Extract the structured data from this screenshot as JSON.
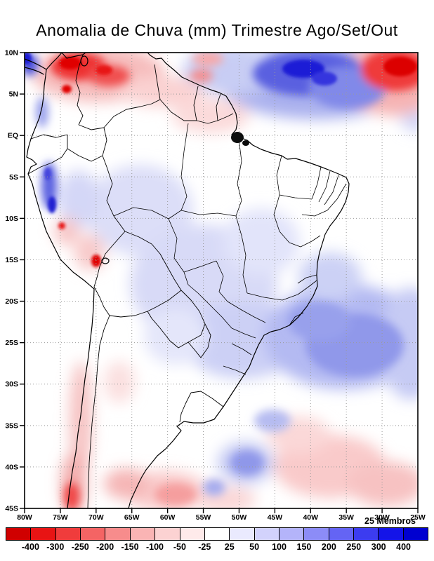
{
  "title": "Anomalia de Chuva (mm) Trimestre Ago/Set/Out",
  "axes": {
    "lat": [
      "10N",
      "5N",
      "EQ",
      "5S",
      "10S",
      "15S",
      "20S",
      "25S",
      "30S",
      "35S",
      "40S",
      "45S"
    ],
    "lon": [
      "80W",
      "75W",
      "70W",
      "65W",
      "60W",
      "55W",
      "50W",
      "45W",
      "40W",
      "35W",
      "30W",
      "25W"
    ]
  },
  "legend": {
    "members": "25 Membros",
    "colorbar": {
      "tick_labels": [
        "-400",
        "-300",
        "-250",
        "-200",
        "-150",
        "-100",
        "-50",
        "-25",
        "25",
        "50",
        "100",
        "150",
        "200",
        "250",
        "300",
        "400"
      ],
      "colors": [
        "#d00000",
        "#e81414",
        "#f03c3c",
        "#f46464",
        "#f78c8c",
        "#fab4b4",
        "#fcd2d2",
        "#feeaea",
        "#ffffff",
        "#eaeafe",
        "#d2d2fc",
        "#b4b4fa",
        "#8c8cf7",
        "#6464f4",
        "#3c3cf0",
        "#1414e8",
        "#0000d0"
      ]
    }
  },
  "chart_data": {
    "type": "heatmap",
    "title": "Anomalia de Chuva (mm) Trimestre Ago/Set/Out",
    "region": "South America",
    "x_ticks": [
      "80W",
      "75W",
      "70W",
      "65W",
      "60W",
      "55W",
      "50W",
      "45W",
      "40W",
      "35W",
      "30W",
      "25W"
    ],
    "y_ticks": [
      "10N",
      "5N",
      "EQ",
      "5S",
      "10S",
      "15S",
      "20S",
      "25S",
      "30S",
      "35S",
      "40S",
      "45S"
    ],
    "units": "mm",
    "levels_mm": [
      -400,
      -300,
      -250,
      -200,
      -150,
      -100,
      -50,
      -25,
      25,
      50,
      100,
      150,
      200,
      250,
      300,
      400
    ],
    "palette": [
      "#d00000",
      "#e81414",
      "#f03c3c",
      "#f46464",
      "#f78c8c",
      "#fab4b4",
      "#fcd2d2",
      "#feeaea",
      "#ffffff",
      "#eaeafe",
      "#d2d2fc",
      "#b4b4fa",
      "#8c8cf7",
      "#6464f4",
      "#3c3cf0",
      "#1414e8",
      "#0000d0"
    ],
    "ensemble_members": 25,
    "features": [
      {
        "area": "Colombia / Venezuela (5N-10N, 78W-60W)",
        "anomaly": "negative, -100 to -400 mm"
      },
      {
        "area": "Tropical Atlantic (0-10N, 55W-35W)",
        "anomaly": "positive, +100 to +400 mm"
      },
      {
        "area": "Tropical Atlantic NE corner (5N-10N, 32W-25W)",
        "anomaly": "negative, -200 to -400 mm"
      },
      {
        "area": "Central and western Brazil",
        "anomaly": "weak positive, +25 to +50 mm"
      },
      {
        "area": "Southeast Brazil and SW Atlantic (20S-30S, 50W-25W)",
        "anomaly": "positive, +50 to +150 mm"
      },
      {
        "area": "Peru coast (5S-15S)",
        "anomaly": "strong positive spots +200/+400 mm with local negative spots -200 mm"
      },
      {
        "area": "Chile coast (30S-45S)",
        "anomaly": "negative, -25 to -100 mm"
      },
      {
        "area": "Southern Argentina and SW Atlantic (35S-45S)",
        "anomaly": "weak negative, -25 to -50 mm"
      },
      {
        "area": "Amazon delta",
        "anomaly": "coastline / river detail (no fill)"
      }
    ]
  }
}
